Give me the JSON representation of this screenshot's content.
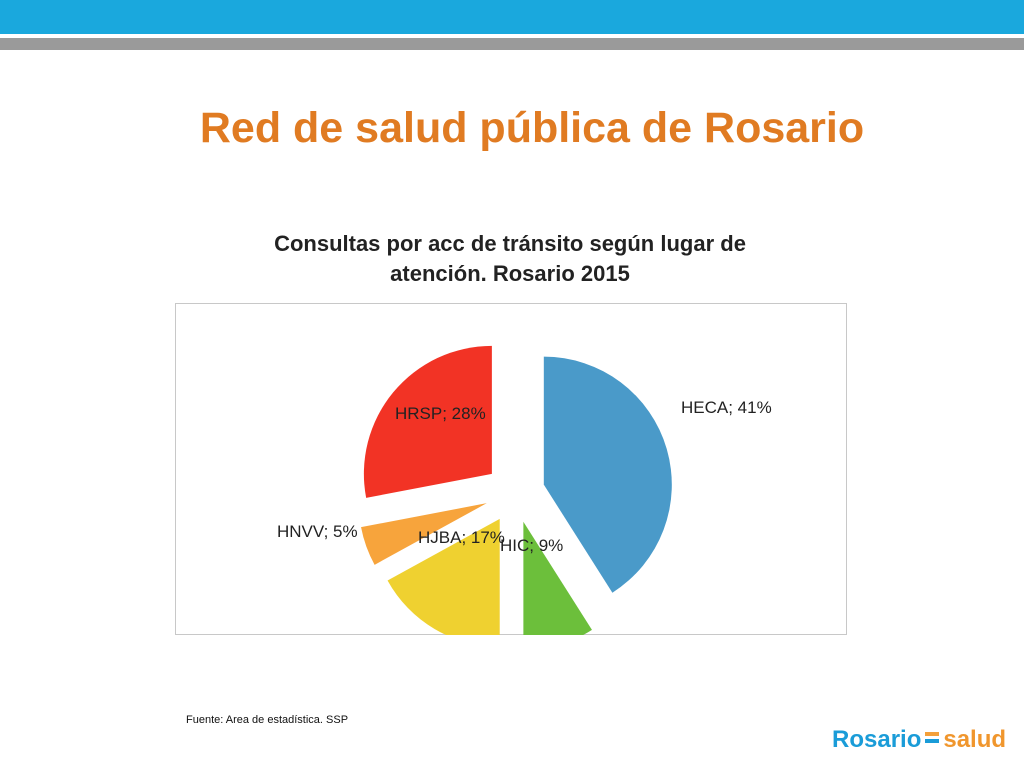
{
  "slide": {
    "title": "Red de salud pública de Rosario",
    "source": "Fuente: Area de  estadística. SSP",
    "logo": {
      "left": "Rosario",
      "right": "salud"
    }
  },
  "colors": {
    "title": "#e07b22",
    "header_bar": "#1aa8dd"
  },
  "chart_data": {
    "type": "pie",
    "title_line1": "Consultas por acc de tránsito según lugar de",
    "title_line2": "atención. Rosario 2015",
    "slices": [
      {
        "label": "HECA; 41%",
        "category": "HECA",
        "value": 41,
        "color": "#4a9ac9"
      },
      {
        "label": "HIC; 9%",
        "category": "HIC",
        "value": 9,
        "color": "#6cbf3b"
      },
      {
        "label": "HJBA; 17%",
        "category": "HJBA",
        "value": 17,
        "color": "#efd130"
      },
      {
        "label": "HNVV; 5%",
        "category": "HNVV",
        "value": 5,
        "color": "#f7a43c"
      },
      {
        "label": "HRSP; 28%",
        "category": "HRSP",
        "value": 28,
        "color": "#f23325"
      }
    ],
    "exploded": true,
    "legend": "none"
  }
}
